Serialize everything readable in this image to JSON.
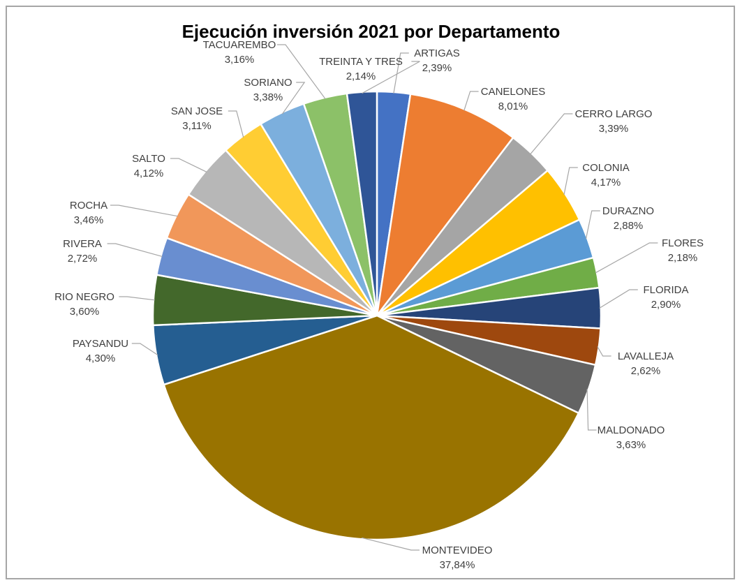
{
  "chart_data": {
    "type": "pie",
    "title": "Ejecución inversión 2021 por Departamento",
    "slices": [
      {
        "name": "ARTIGAS",
        "value": 2.39,
        "label": "2,39%",
        "color": "#4472c4"
      },
      {
        "name": "CANELONES",
        "value": 8.01,
        "label": "8,01%",
        "color": "#ed7d31"
      },
      {
        "name": "CERRO LARGO",
        "value": 3.39,
        "label": "3,39%",
        "color": "#a5a5a5"
      },
      {
        "name": "COLONIA",
        "value": 4.17,
        "label": "4,17%",
        "color": "#ffc000"
      },
      {
        "name": "DURAZNO",
        "value": 2.88,
        "label": "2,88%",
        "color": "#5b9bd5"
      },
      {
        "name": "FLORES",
        "value": 2.18,
        "label": "2,18%",
        "color": "#70ad47"
      },
      {
        "name": "FLORIDA",
        "value": 2.9,
        "label": "2,90%",
        "color": "#264478"
      },
      {
        "name": "LAVALLEJA",
        "value": 2.62,
        "label": "2,62%",
        "color": "#9e480e"
      },
      {
        "name": "MALDONADO",
        "value": 3.63,
        "label": "3,63%",
        "color": "#636363"
      },
      {
        "name": "MONTEVIDEO",
        "value": 37.84,
        "label": "37,84%",
        "color": "#997300"
      },
      {
        "name": "PAYSANDU",
        "value": 4.3,
        "label": "4,30%",
        "color": "#255e91"
      },
      {
        "name": "RIO NEGRO",
        "value": 3.6,
        "label": "3,60%",
        "color": "#43682b"
      },
      {
        "name": "RIVERA",
        "value": 2.72,
        "label": "2,72%",
        "color": "#698ed0"
      },
      {
        "name": "ROCHA",
        "value": 3.46,
        "label": "3,46%",
        "color": "#f1975a"
      },
      {
        "name": "SALTO",
        "value": 4.12,
        "label": "4,12%",
        "color": "#b7b7b7"
      },
      {
        "name": "SAN JOSE",
        "value": 3.11,
        "label": "3,11%",
        "color": "#ffcd33"
      },
      {
        "name": "SORIANO",
        "value": 3.38,
        "label": "3,38%",
        "color": "#7cafdd"
      },
      {
        "name": "TACUAREMBO",
        "value": 3.16,
        "label": "3,16%",
        "color": "#8cc168"
      },
      {
        "name": "TREINTA Y TRES",
        "value": 2.14,
        "label": "2,14%",
        "color": "#2f5597"
      }
    ],
    "legend": "none",
    "data_labels": "outside with leader lines"
  }
}
